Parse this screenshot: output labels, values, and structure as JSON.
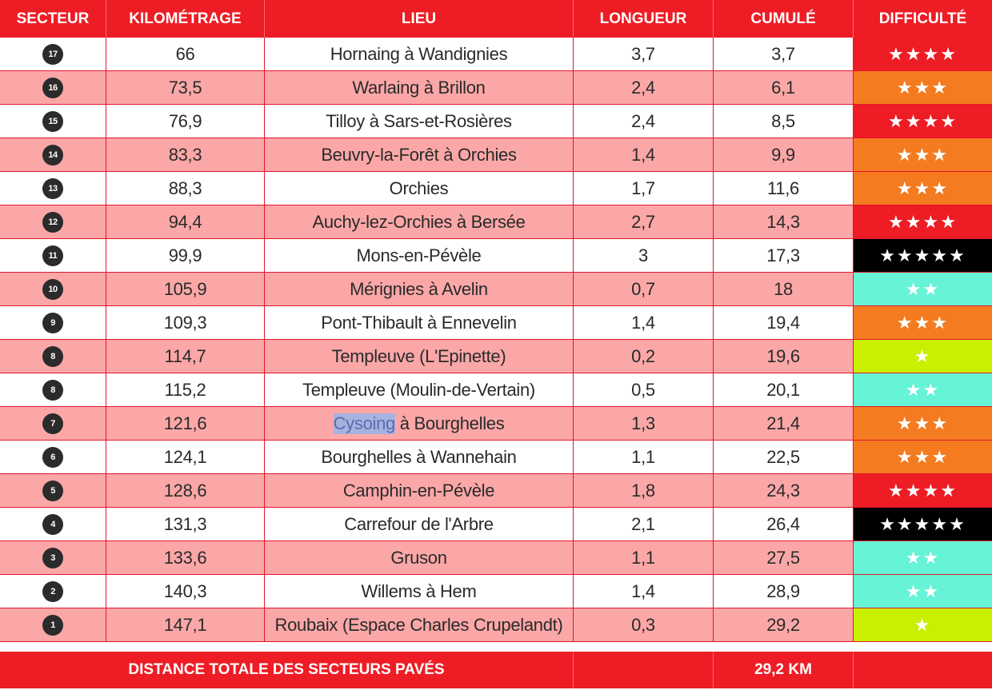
{
  "header": {
    "secteur": "SECTEUR",
    "kilometrage": "KILOMÉTRAGE",
    "lieu": "LIEU",
    "longueur": "LONGUEUR",
    "cumule": "CUMULÉ",
    "difficulte": "DIFFICULTÉ"
  },
  "colors": {
    "header_red": "#ee1c25",
    "row_pink": "#fba7a7",
    "difficulty_4": "#ee1c25",
    "difficulty_3": "#f47b20",
    "difficulty_5": "#000000",
    "difficulty_2": "#66f3d6",
    "difficulty_1": "#c8f000"
  },
  "rows": [
    {
      "secteur": "17",
      "km": "66",
      "lieu": "Hornaing à Wandignies",
      "longueur": "3,7",
      "cumule": "3,7",
      "stars": "★★★★",
      "color": "#ee1c25"
    },
    {
      "secteur": "16",
      "km": "73,5",
      "lieu": "Warlaing à Brillon",
      "longueur": "2,4",
      "cumule": "6,1",
      "stars": "★★★",
      "color": "#f47b20"
    },
    {
      "secteur": "15",
      "km": "76,9",
      "lieu": "Tilloy à Sars-et-Rosières",
      "longueur": "2,4",
      "cumule": "8,5",
      "stars": "★★★★",
      "color": "#ee1c25"
    },
    {
      "secteur": "14",
      "km": "83,3",
      "lieu": "Beuvry-la-Forêt à Orchies",
      "longueur": "1,4",
      "cumule": "9,9",
      "stars": "★★★",
      "color": "#f47b20"
    },
    {
      "secteur": "13",
      "km": "88,3",
      "lieu": "Orchies",
      "longueur": "1,7",
      "cumule": "11,6",
      "stars": "★★★",
      "color": "#f47b20"
    },
    {
      "secteur": "12",
      "km": "94,4",
      "lieu": "Auchy-lez-Orchies à Bersée",
      "longueur": "2,7",
      "cumule": "14,3",
      "stars": "★★★★",
      "color": "#ee1c25"
    },
    {
      "secteur": "11",
      "km": "99,9",
      "lieu": "Mons-en-Pévèle",
      "longueur": "3",
      "cumule": "17,3",
      "stars": "★★★★★",
      "color": "#000000"
    },
    {
      "secteur": "10",
      "km": "105,9",
      "lieu": "Mérignies à Avelin",
      "longueur": "0,7",
      "cumule": "18",
      "stars": "★★",
      "color": "#66f3d6"
    },
    {
      "secteur": "9",
      "km": "109,3",
      "lieu": "Pont-Thibault à Ennevelin",
      "longueur": "1,4",
      "cumule": "19,4",
      "stars": "★★★",
      "color": "#f47b20"
    },
    {
      "secteur": "8",
      "km": "114,7",
      "lieu": "Templeuve (L'Epinette)",
      "longueur": "0,2",
      "cumule": "19,6",
      "stars": "★",
      "color": "#c8f000"
    },
    {
      "secteur": "8",
      "km": "115,2",
      "lieu": "Templeuve (Moulin-de-Vertain)",
      "longueur": "0,5",
      "cumule": "20,1",
      "stars": "★★",
      "color": "#66f3d6"
    },
    {
      "secteur": "7",
      "km": "121,6",
      "lieu_hl": "Cysoing",
      "lieu_rest": " à Bourghelles",
      "longueur": "1,3",
      "cumule": "21,4",
      "stars": "★★★",
      "color": "#f47b20"
    },
    {
      "secteur": "6",
      "km": "124,1",
      "lieu": "Bourghelles à Wannehain",
      "longueur": "1,1",
      "cumule": "22,5",
      "stars": "★★★",
      "color": "#f47b20"
    },
    {
      "secteur": "5",
      "km": "128,6",
      "lieu": "Camphin-en-Pévèle",
      "longueur": "1,8",
      "cumule": "24,3",
      "stars": "★★★★",
      "color": "#ee1c25"
    },
    {
      "secteur": "4",
      "km": "131,3",
      "lieu": "Carrefour de l'Arbre",
      "longueur": "2,1",
      "cumule": "26,4",
      "stars": "★★★★★",
      "color": "#000000"
    },
    {
      "secteur": "3",
      "km": "133,6",
      "lieu": "Gruson",
      "longueur": "1,1",
      "cumule": "27,5",
      "stars": "★★",
      "color": "#66f3d6"
    },
    {
      "secteur": "2",
      "km": "140,3",
      "lieu": "Willems à Hem",
      "longueur": "1,4",
      "cumule": "28,9",
      "stars": "★★",
      "color": "#66f3d6"
    },
    {
      "secteur": "1",
      "km": "147,1",
      "lieu": "Roubaix (Espace Charles Crupelandt)",
      "longueur": "0,3",
      "cumule": "29,2",
      "stars": "★",
      "color": "#c8f000"
    }
  ],
  "total": {
    "label": "DISTANCE TOTALE DES SECTEURS PAVÉS",
    "value": "29,2 KM"
  }
}
